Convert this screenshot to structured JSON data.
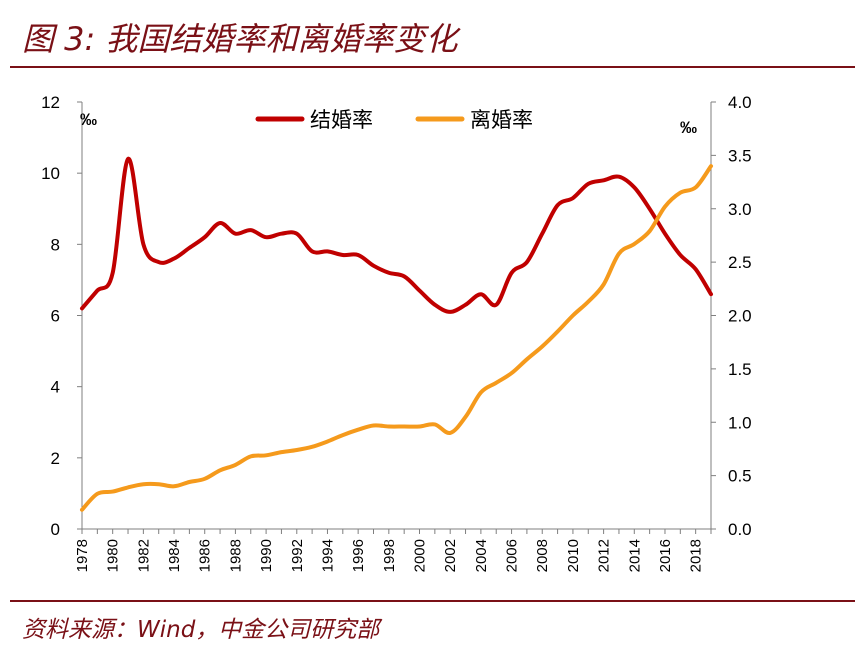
{
  "header": {
    "title": "图 3:  我国结婚率和离婚率变化"
  },
  "footer": {
    "source": "资料来源：Wind，中金公司研究部"
  },
  "chart_data": {
    "type": "line",
    "x": [
      1978,
      1979,
      1980,
      1981,
      1982,
      1983,
      1984,
      1985,
      1986,
      1987,
      1988,
      1989,
      1990,
      1991,
      1992,
      1993,
      1994,
      1995,
      1996,
      1997,
      1998,
      1999,
      2000,
      2001,
      2002,
      2003,
      2004,
      2005,
      2006,
      2007,
      2008,
      2009,
      2010,
      2011,
      2012,
      2013,
      2014,
      2015,
      2016,
      2017,
      2018,
      2019
    ],
    "x_ticks": [
      "1978",
      "1980",
      "1982",
      "1984",
      "1986",
      "1988",
      "1990",
      "1992",
      "1994",
      "1996",
      "1998",
      "2000",
      "2002",
      "2004",
      "2006",
      "2008",
      "2010",
      "2012",
      "2014",
      "2016",
      "2018"
    ],
    "series": [
      {
        "name": "结婚率",
        "axis": "left",
        "color": "#c00000",
        "values": [
          6.2,
          6.7,
          7.2,
          10.4,
          8.0,
          7.5,
          7.6,
          7.9,
          8.2,
          8.6,
          8.3,
          8.4,
          8.2,
          8.3,
          8.3,
          7.8,
          7.8,
          7.7,
          7.7,
          7.4,
          7.2,
          7.1,
          6.7,
          6.3,
          6.1,
          6.3,
          6.6,
          6.3,
          7.2,
          7.5,
          8.3,
          9.1,
          9.3,
          9.7,
          9.8,
          9.9,
          9.6,
          9.0,
          8.3,
          7.7,
          7.3,
          6.6
        ]
      },
      {
        "name": "离婚率",
        "axis": "right",
        "color": "#f59a1c",
        "values": [
          0.18,
          0.33,
          0.35,
          0.39,
          0.42,
          0.42,
          0.4,
          0.44,
          0.47,
          0.55,
          0.6,
          0.68,
          0.69,
          0.72,
          0.74,
          0.77,
          0.82,
          0.88,
          0.93,
          0.97,
          0.96,
          0.96,
          0.96,
          0.98,
          0.9,
          1.05,
          1.28,
          1.37,
          1.46,
          1.59,
          1.71,
          1.85,
          2.0,
          2.13,
          2.29,
          2.58,
          2.67,
          2.79,
          3.02,
          3.15,
          3.2,
          3.4
        ]
      }
    ],
    "y_left": {
      "unit": "‰",
      "ylim": [
        0,
        12
      ],
      "ticks": [
        "0",
        "2",
        "4",
        "6",
        "8",
        "10",
        "12"
      ]
    },
    "y_right": {
      "unit": "‰",
      "ylim": [
        0,
        4
      ],
      "ticks": [
        "0.0",
        "0.5",
        "1.0",
        "1.5",
        "2.0",
        "2.5",
        "3.0",
        "3.5",
        "4.0"
      ]
    },
    "legend": "top-center",
    "grid": false
  }
}
